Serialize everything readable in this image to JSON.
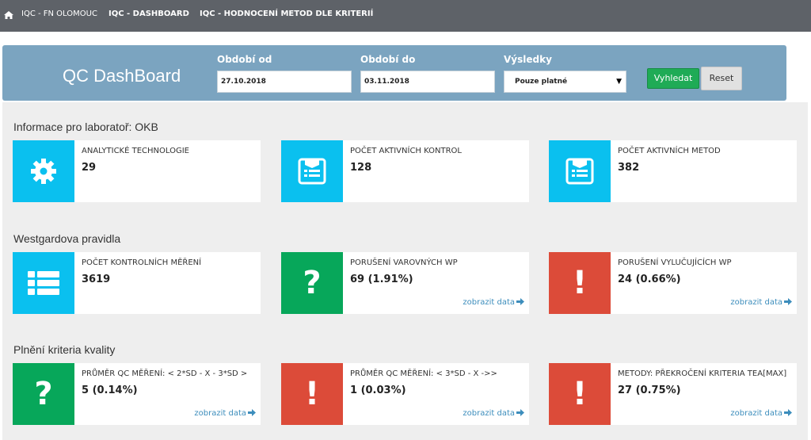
{
  "nav": {
    "brand": "IQC - FN OLOMOUC",
    "dashboard": "IQC - DASHBOARD",
    "evaluation": "IQC - HODNOCENÍ METOD DLE KRITERIÍ"
  },
  "header": {
    "title": "QC DashBoard",
    "period_from_label": "Období od",
    "period_from_value": "27.10.2018",
    "period_to_label": "Období do",
    "period_to_value": "03.11.2018",
    "results_label": "Výsledky",
    "results_value": "Pouze platné",
    "search_label": "Vyhledat",
    "reset_label": "Reset"
  },
  "sections": [
    {
      "title": "Informace pro laboratoř: OKB",
      "cards": [
        {
          "title": "ANALYTICKÉ TECHNOLOGIE",
          "value": "29",
          "icon": "gear-icon",
          "color": "#0ac0ef"
        },
        {
          "title": "POČET AKTIVNÍCH KONTROL",
          "value": "128",
          "icon": "list-doc-icon",
          "color": "#0ac0ef"
        },
        {
          "title": "POČET AKTIVNÍCH METOD",
          "value": "382",
          "icon": "list-doc-icon",
          "color": "#0ac0ef"
        }
      ]
    },
    {
      "title": "Westgardova pravidla",
      "cards": [
        {
          "title": "POČET KONTROLNÍCH MĚŘENÍ",
          "value": "3619",
          "icon": "list-icon",
          "color": "#0ac0ef"
        },
        {
          "title": "PORUŠENÍ VAROVNÝCH WP",
          "value": "69 (1.91%)",
          "icon": "question-icon",
          "color": "#07a75a",
          "link": "zobrazit data"
        },
        {
          "title": "PORUŠENÍ VYLUČUJÍCÍCH WP",
          "value": "24 (0.66%)",
          "icon": "exclamation-icon",
          "color": "#dc4b39",
          "link": "zobrazit data"
        }
      ]
    },
    {
      "title": "Plnění kriteria kvality",
      "cards": [
        {
          "title": "PRŮMĚR QC MĚŘENÍ: < 2*SD - X - 3*SD >",
          "value": "5 (0.14%)",
          "icon": "question-icon",
          "color": "#07a75a",
          "link": "zobrazit data"
        },
        {
          "title": "PRŮMĚR QC MĚŘENÍ: < 3*SD - X ->>",
          "value": "1 (0.03%)",
          "icon": "exclamation-icon",
          "color": "#dc4b39",
          "link": "zobrazit data"
        },
        {
          "title": "METODY: PŘEKROČENÍ KRITERIA TEA[MAX]",
          "value": "27 (0.75%)",
          "icon": "exclamation-icon",
          "color": "#dc4b39",
          "link": "zobrazit data"
        }
      ]
    }
  ]
}
